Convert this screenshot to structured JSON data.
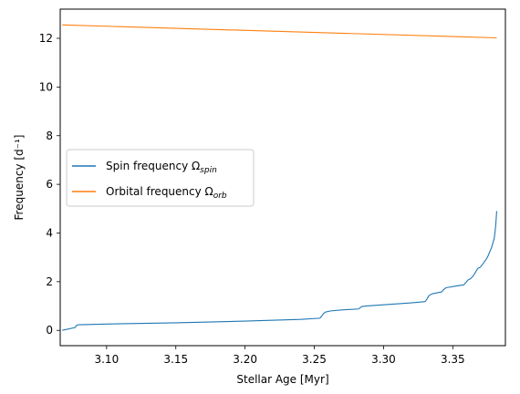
{
  "chart_data": {
    "type": "line",
    "xlabel": "Stellar Age [Myr]",
    "ylabel": "Frequency [d⁻¹]",
    "xlim": [
      3.0665,
      3.388
    ],
    "ylim": [
      -0.629,
      13.2
    ],
    "xticks": [
      3.1,
      3.15,
      3.2,
      3.25,
      3.3,
      3.35
    ],
    "xtick_labels": [
      "3.10",
      "3.15",
      "3.20",
      "3.25",
      "3.30",
      "3.35"
    ],
    "yticks": [
      0,
      2,
      4,
      6,
      8,
      10,
      12
    ],
    "ytick_labels": [
      "0",
      "2",
      "4",
      "6",
      "8",
      "10",
      "12"
    ],
    "grid": false,
    "legend_position": "center-left",
    "series": [
      {
        "name": "Spin frequency Ω",
        "name_subscript": "spin",
        "color": "#1f77b4",
        "x": [
          3.068,
          3.0775,
          3.0778,
          3.079,
          3.08,
          3.1,
          3.15,
          3.2,
          3.24,
          3.254,
          3.2555,
          3.2565,
          3.258,
          3.262,
          3.27,
          3.282,
          3.2833,
          3.2845,
          3.287,
          3.3,
          3.32,
          3.33,
          3.3315,
          3.3328,
          3.335,
          3.342,
          3.3435,
          3.345,
          3.352,
          3.358,
          3.3595,
          3.361,
          3.3628,
          3.3642,
          3.3658,
          3.367,
          3.3682,
          3.37,
          3.372,
          3.375,
          3.378,
          3.38,
          3.381,
          3.3817
        ],
        "y": [
          0.0,
          0.12,
          0.18,
          0.22,
          0.23,
          0.26,
          0.31,
          0.38,
          0.45,
          0.5,
          0.6,
          0.68,
          0.75,
          0.8,
          0.84,
          0.88,
          0.94,
          0.98,
          1.0,
          1.05,
          1.13,
          1.18,
          1.3,
          1.43,
          1.5,
          1.58,
          1.68,
          1.75,
          1.82,
          1.87,
          1.97,
          2.07,
          2.12,
          2.2,
          2.33,
          2.45,
          2.55,
          2.6,
          2.75,
          3.0,
          3.4,
          3.8,
          4.3,
          4.9
        ]
      },
      {
        "name": "Orbital frequency Ω",
        "name_subscript": "orb",
        "color": "#ff7f0e",
        "x": [
          3.068,
          3.3817
        ],
        "y": [
          12.55,
          12.02
        ]
      }
    ]
  }
}
